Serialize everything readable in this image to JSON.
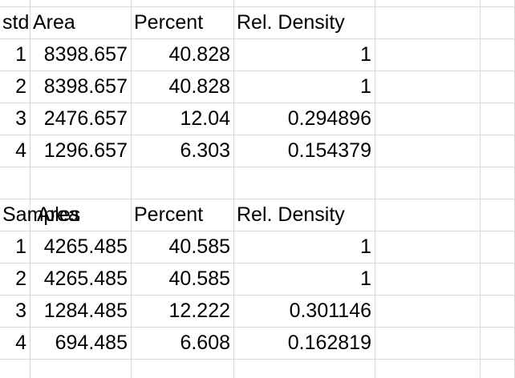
{
  "stds": {
    "headers": [
      "stds",
      "Area",
      "Percent",
      "Rel. Density"
    ],
    "rows": [
      {
        "id": "1",
        "area": "8398.657",
        "percent": "40.828",
        "rel": "1"
      },
      {
        "id": "2",
        "area": "8398.657",
        "percent": "40.828",
        "rel": "1"
      },
      {
        "id": "3",
        "area": "2476.657",
        "percent": "12.04",
        "rel": "0.294896"
      },
      {
        "id": "4",
        "area": "1296.657",
        "percent": "6.303",
        "rel": "0.154379"
      }
    ]
  },
  "samples": {
    "headers": [
      "Samples",
      "Area",
      "Percent",
      "Rel. Density"
    ],
    "rows": [
      {
        "id": "1",
        "area": "4265.485",
        "percent": "40.585",
        "rel": "1"
      },
      {
        "id": "2",
        "area": "4265.485",
        "percent": "40.585",
        "rel": "1"
      },
      {
        "id": "3",
        "area": "1284.485",
        "percent": "12.222",
        "rel": "0.301146"
      },
      {
        "id": "4",
        "area": "694.485",
        "percent": "6.608",
        "rel": "0.162819"
      }
    ]
  }
}
